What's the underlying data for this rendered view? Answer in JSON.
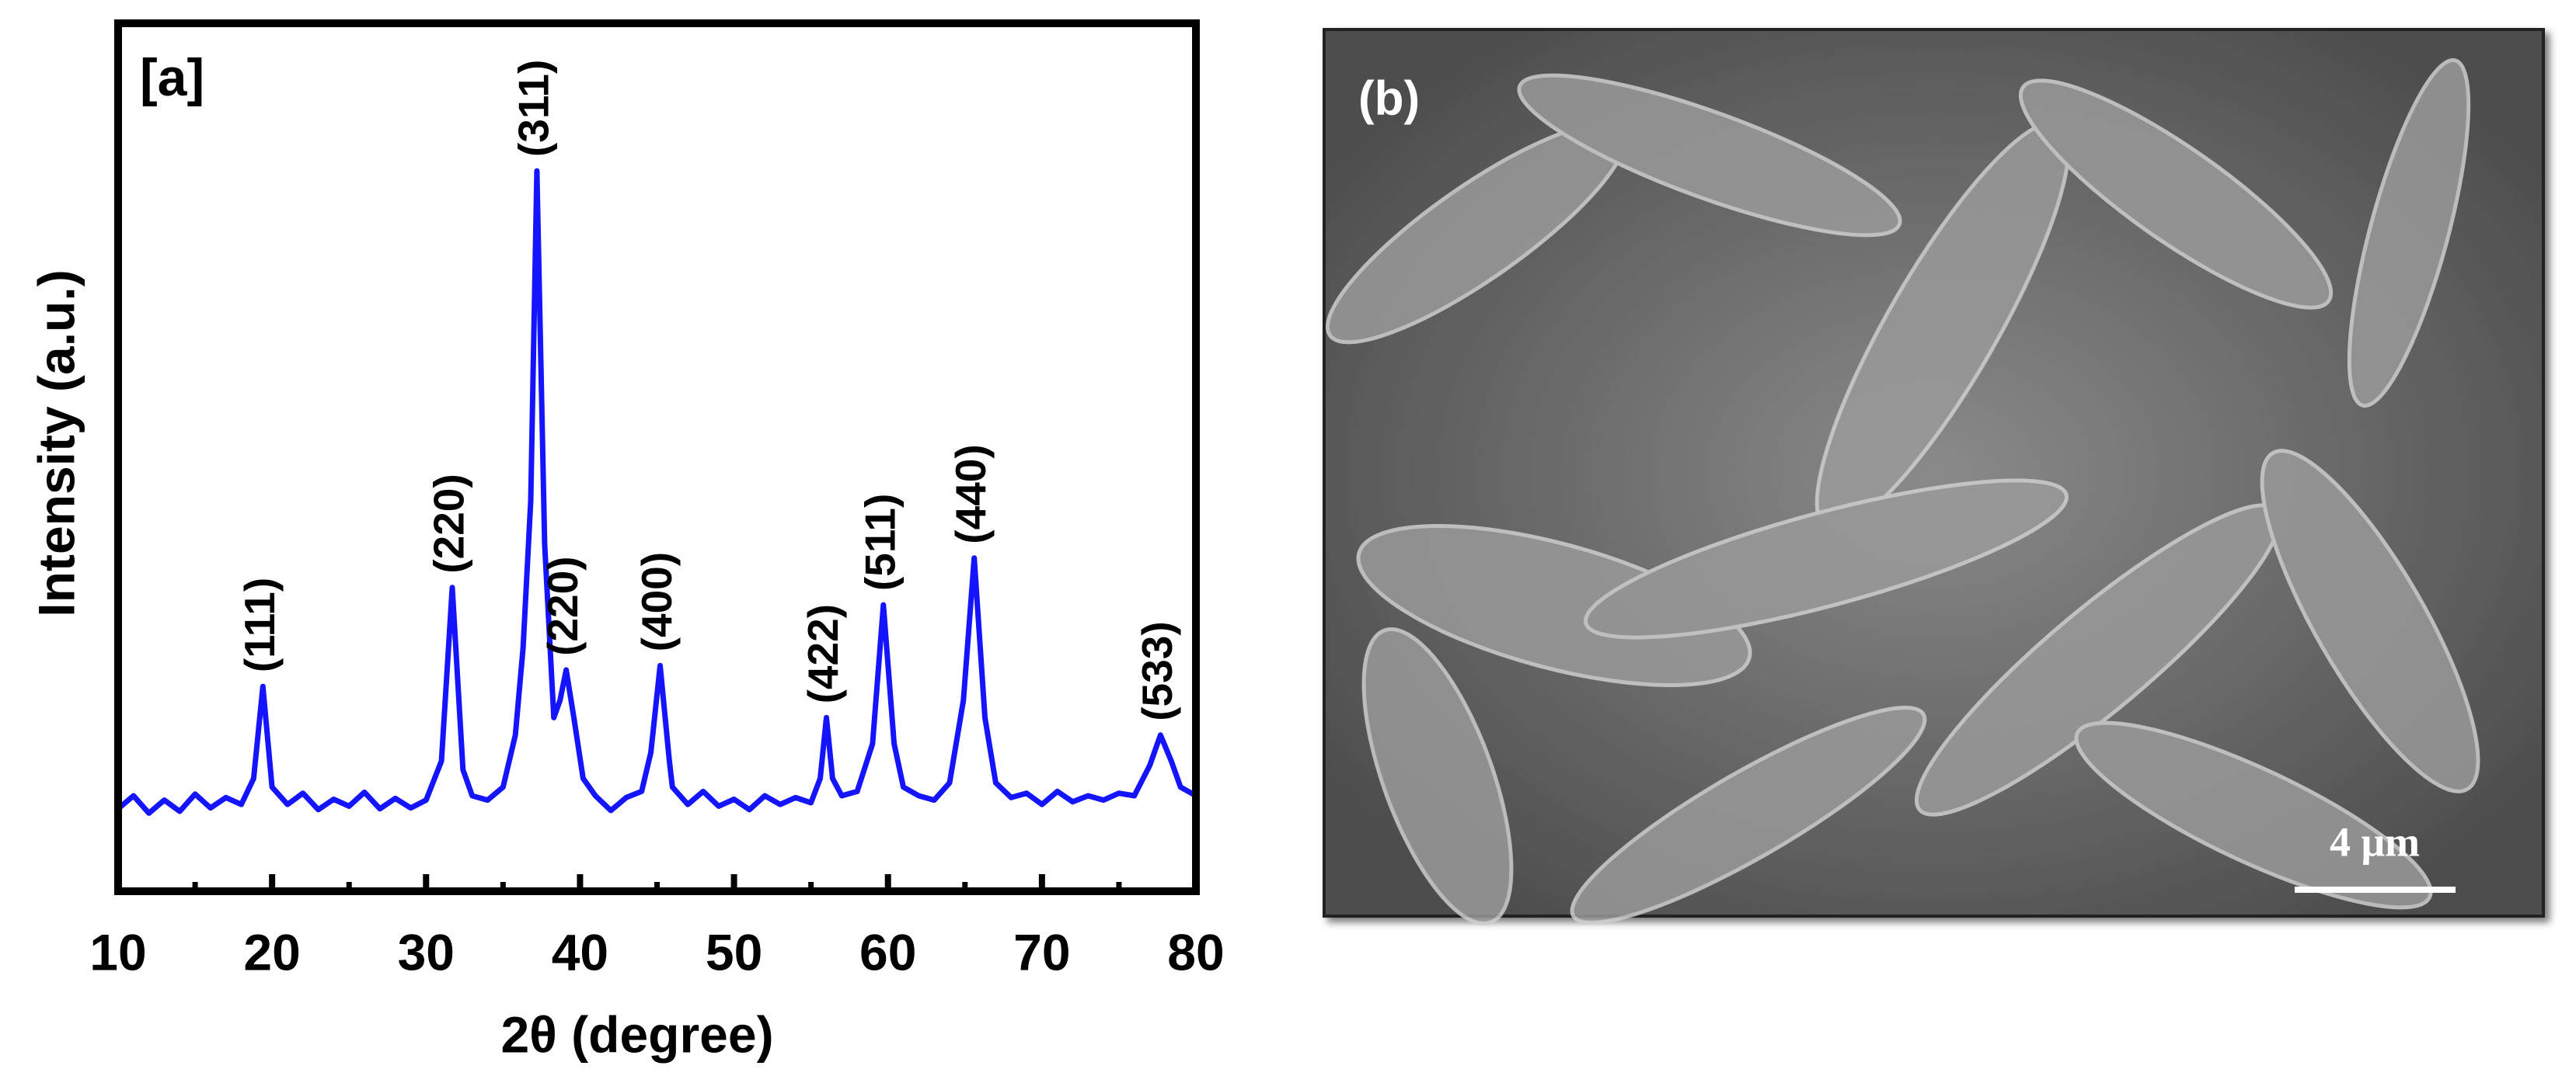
{
  "chart_data": {
    "type": "line",
    "panel_label": "[a]",
    "xlabel": "2θ (degree)",
    "ylabel": "Intensity (a.u.)",
    "xlim": [
      10,
      80
    ],
    "xticks": [
      10,
      20,
      30,
      40,
      50,
      60,
      70,
      80
    ],
    "xminorticks": [
      15,
      25,
      35,
      45,
      55,
      65,
      75
    ],
    "ylim": [
      0,
      100
    ],
    "series": [
      {
        "color": "#1414ff",
        "x": [
          10,
          11,
          12,
          13,
          14,
          15,
          16,
          17,
          18,
          18.8,
          19.4,
          20,
          21,
          22,
          23,
          24,
          25,
          26,
          27,
          28,
          29,
          30,
          31,
          31.7,
          32.4,
          33,
          34,
          35,
          35.8,
          36.3,
          36.8,
          37.2,
          37.7,
          38.3,
          38.7,
          39.1,
          39.6,
          40.2,
          41,
          42,
          43,
          44,
          44.6,
          45.2,
          45.8,
          46,
          47,
          48,
          49,
          50,
          51,
          52,
          53,
          54,
          55,
          55.6,
          56,
          56.4,
          57,
          58,
          59,
          59.7,
          60.4,
          61,
          62,
          63,
          64,
          64.9,
          65.6,
          66.3,
          67,
          68,
          69,
          70,
          71,
          72,
          73,
          74,
          75,
          76,
          77,
          77.7,
          78.4,
          79,
          80
        ],
        "values": [
          9.5,
          11,
          9,
          10.5,
          9.2,
          11.2,
          9.6,
          10.8,
          10,
          13,
          23.6,
          12,
          10,
          11.3,
          9.4,
          10.6,
          9.8,
          11.4,
          9.5,
          10.7,
          9.6,
          10.5,
          15,
          35,
          14,
          11,
          10.5,
          12,
          18,
          28,
          45,
          83,
          40,
          20,
          22,
          25.5,
          20,
          13,
          11,
          9.3,
          10.8,
          11.5,
          16,
          26,
          15,
          12,
          10,
          11.5,
          9.8,
          10.6,
          9.4,
          11,
          10,
          10.8,
          10.2,
          13,
          20,
          13,
          11,
          11.5,
          17,
          33,
          17,
          12,
          11,
          10.5,
          12.5,
          22,
          38.4,
          20,
          12.5,
          10.8,
          11.3,
          10,
          11.5,
          10.3,
          11,
          10.5,
          11.3,
          11,
          14.5,
          18,
          15,
          12,
          11
        ]
      }
    ],
    "annotations": [
      {
        "text": "(111)",
        "x": 19.4
      },
      {
        "text": "(220)",
        "x": 31.7
      },
      {
        "text": "(311)",
        "x": 37.2
      },
      {
        "text": "(220)",
        "x": 39.1
      },
      {
        "text": "(400)",
        "x": 45.2
      },
      {
        "text": "(422)",
        "x": 56
      },
      {
        "text": "(511)",
        "x": 59.7
      },
      {
        "text": "(440)",
        "x": 65.6
      },
      {
        "text": "(533)",
        "x": 77.7
      }
    ]
  },
  "image": {
    "panel_label": "(b)",
    "scale_bar": "4 μm"
  }
}
